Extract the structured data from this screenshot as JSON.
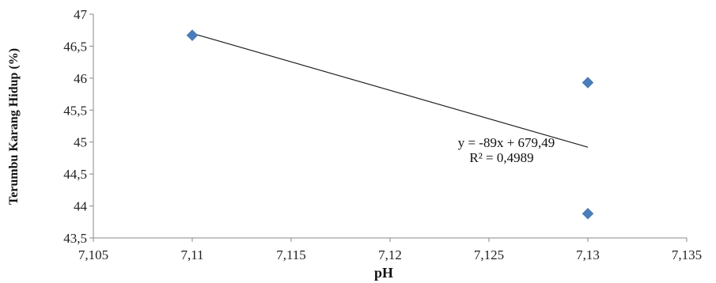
{
  "chart_data": {
    "type": "scatter",
    "xlabel": "pH",
    "ylabel": "Terumbu Karang Hidup (%)",
    "xlim": [
      7.105,
      7.135
    ],
    "ylim": [
      43.5,
      47
    ],
    "x_ticks": [
      "7,105",
      "7,11",
      "7,115",
      "7,12",
      "7,125",
      "7,13",
      "7,135"
    ],
    "y_ticks": [
      "43,5",
      "44",
      "44,5",
      "45",
      "45,5",
      "46",
      "46,5",
      "47"
    ],
    "grid": false,
    "points": [
      {
        "x": 7.11,
        "y": 46.67
      },
      {
        "x": 7.13,
        "y": 45.93
      },
      {
        "x": 7.13,
        "y": 43.88
      }
    ],
    "trendline": {
      "type": "linear",
      "x_range": [
        7.11,
        7.13
      ],
      "slope": -89,
      "intercept": 679.49,
      "equation": "y = -89x + 679,49",
      "r_squared": "R² = 0,4989"
    },
    "marker_color": "#4a7ebb",
    "line_color": "#222222"
  }
}
